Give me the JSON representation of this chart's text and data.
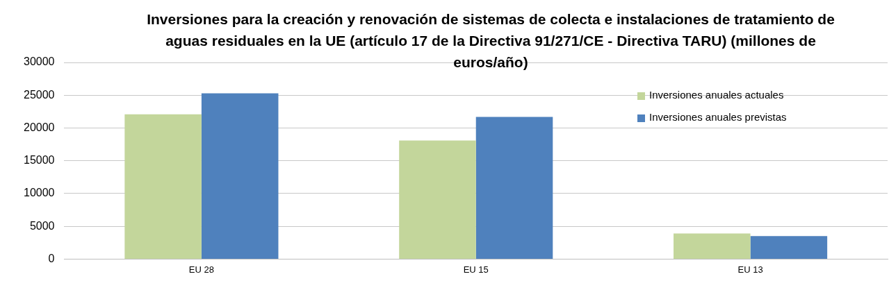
{
  "chart_data": {
    "type": "bar",
    "title": "Inversiones para la creación y renovación de sistemas de colecta e instalaciones de tratamiento de aguas residuales en la UE (artículo 17 de la Directiva 91/271/CE - Directiva TARU) (millones de euros/año)",
    "categories": [
      "EU 28",
      "EU 15",
      "EU 13"
    ],
    "series": [
      {
        "name": "Inversiones anuales actuales",
        "color": "#c3d69b",
        "values": [
          22100,
          18100,
          3900
        ]
      },
      {
        "name": "Inversiones anuales previstas",
        "color": "#4f81bd",
        "values": [
          25300,
          21700,
          3500
        ]
      }
    ],
    "ylim": [
      0,
      30000
    ],
    "yticks": [
      0,
      5000,
      10000,
      15000,
      20000,
      25000,
      30000
    ],
    "grid": "y",
    "legend": "top right"
  }
}
